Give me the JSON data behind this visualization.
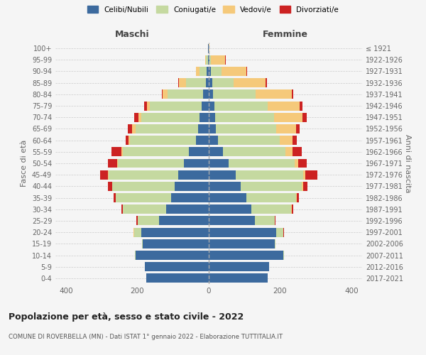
{
  "age_groups": [
    "100+",
    "95-99",
    "90-94",
    "85-89",
    "80-84",
    "75-79",
    "70-74",
    "65-69",
    "60-64",
    "55-59",
    "50-54",
    "45-49",
    "40-44",
    "35-39",
    "30-34",
    "25-29",
    "20-24",
    "15-19",
    "10-14",
    "5-9",
    "0-4"
  ],
  "birth_years": [
    "≤ 1921",
    "1922-1926",
    "1927-1931",
    "1932-1936",
    "1937-1941",
    "1942-1946",
    "1947-1951",
    "1952-1956",
    "1957-1961",
    "1962-1966",
    "1967-1971",
    "1972-1976",
    "1977-1981",
    "1982-1986",
    "1987-1991",
    "1992-1996",
    "1997-2001",
    "2002-2006",
    "2007-2011",
    "2012-2016",
    "2017-2021"
  ],
  "male_celibi": [
    1,
    2,
    5,
    8,
    15,
    20,
    25,
    30,
    35,
    55,
    70,
    85,
    95,
    105,
    120,
    140,
    190,
    185,
    205,
    180,
    175
  ],
  "male_coniugati": [
    1,
    5,
    20,
    55,
    100,
    145,
    165,
    175,
    185,
    185,
    185,
    195,
    175,
    155,
    120,
    60,
    20,
    2,
    2,
    0,
    0
  ],
  "male_vedovi": [
    0,
    2,
    10,
    20,
    15,
    8,
    8,
    10,
    5,
    4,
    2,
    2,
    1,
    1,
    1,
    0,
    1,
    0,
    0,
    0,
    0
  ],
  "male_divorziati": [
    0,
    0,
    1,
    2,
    2,
    8,
    12,
    12,
    8,
    28,
    25,
    22,
    12,
    5,
    3,
    3,
    1,
    0,
    0,
    0,
    0
  ],
  "female_celibi": [
    0,
    1,
    5,
    10,
    12,
    15,
    18,
    20,
    25,
    40,
    55,
    75,
    90,
    105,
    120,
    130,
    190,
    185,
    210,
    170,
    165
  ],
  "female_coniugati": [
    0,
    5,
    30,
    60,
    120,
    150,
    165,
    170,
    175,
    175,
    185,
    190,
    170,
    140,
    110,
    55,
    20,
    2,
    2,
    0,
    0
  ],
  "female_vedovi": [
    2,
    40,
    70,
    90,
    100,
    90,
    80,
    55,
    35,
    20,
    10,
    5,
    5,
    2,
    2,
    0,
    0,
    0,
    0,
    0,
    0
  ],
  "female_divorziati": [
    0,
    2,
    2,
    4,
    5,
    8,
    12,
    10,
    12,
    25,
    25,
    35,
    12,
    5,
    5,
    3,
    2,
    0,
    0,
    0,
    0
  ],
  "colors": {
    "celibi": "#3c6a9e",
    "coniugati": "#c5d9a0",
    "vedovi": "#f5c97a",
    "divorziati": "#cc2222"
  },
  "xlim": 430,
  "title": "Popolazione per età, sesso e stato civile - 2022",
  "subtitle": "COMUNE DI ROVERBELLA (MN) - Dati ISTAT 1° gennaio 2022 - Elaborazione TUTTITALIA.IT",
  "ylabel_left": "Fasce di età",
  "ylabel_right": "Anni di nascita",
  "xlabel_left": "Maschi",
  "xlabel_right": "Femmine",
  "legend_labels": [
    "Celibi/Nubili",
    "Coniugati/e",
    "Vedovi/e",
    "Divorziati/e"
  ],
  "background_color": "#f5f5f5"
}
